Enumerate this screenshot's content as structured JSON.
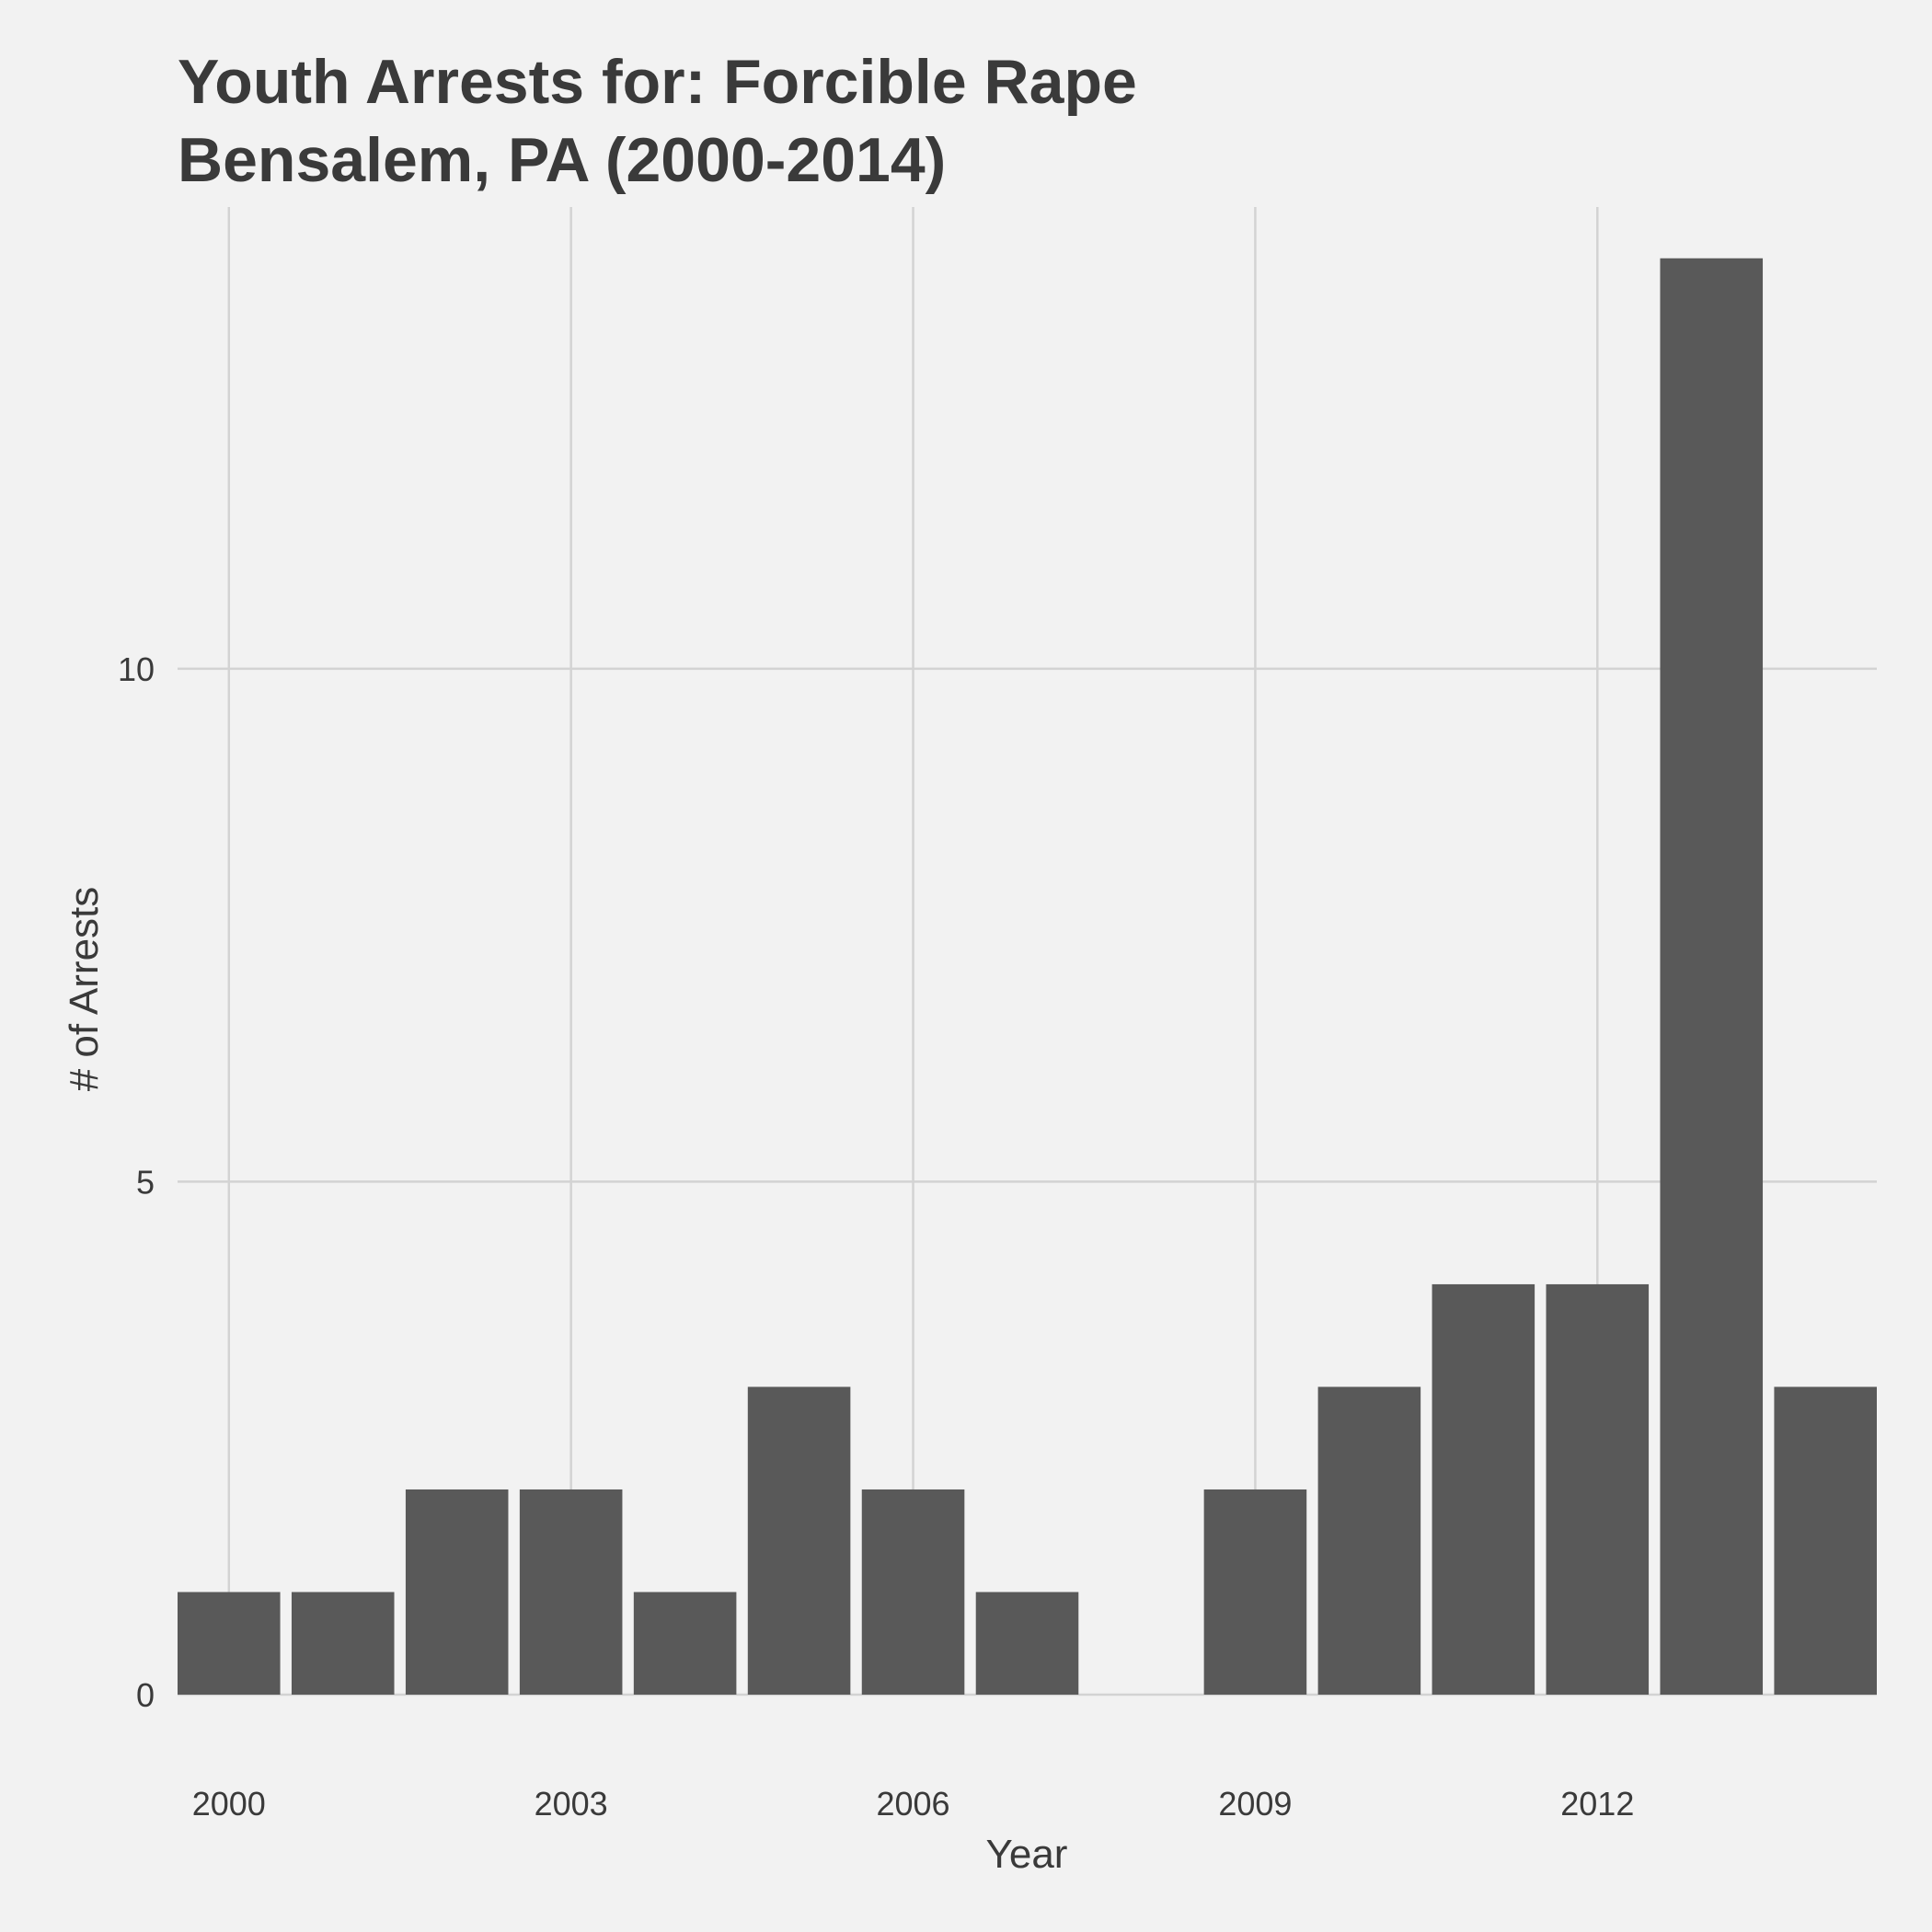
{
  "chart_data": {
    "type": "bar",
    "title_lines": [
      "Youth Arrests for: Forcible Rape",
      "Bensalem, PA (2000-2014)"
    ],
    "xlabel": "Year",
    "ylabel": "# of Arrests",
    "x": [
      2000,
      2001,
      2002,
      2003,
      2004,
      2005,
      2006,
      2007,
      2008,
      2009,
      2010,
      2011,
      2012,
      2013,
      2014
    ],
    "values": [
      1,
      1,
      2,
      2,
      1,
      3,
      2,
      1,
      0,
      2,
      3,
      4,
      4,
      14,
      3
    ],
    "x_ticks": [
      2000,
      2003,
      2006,
      2009,
      2012
    ],
    "y_ticks": [
      0,
      5,
      10
    ],
    "ylim": [
      0,
      14.5
    ],
    "xlim": [
      1999.55,
      2014.45
    ],
    "grid": true,
    "legend": "none",
    "bar_color": "#595959",
    "grid_color": "#d3d3d3",
    "background_color": "#f2f2f2"
  }
}
